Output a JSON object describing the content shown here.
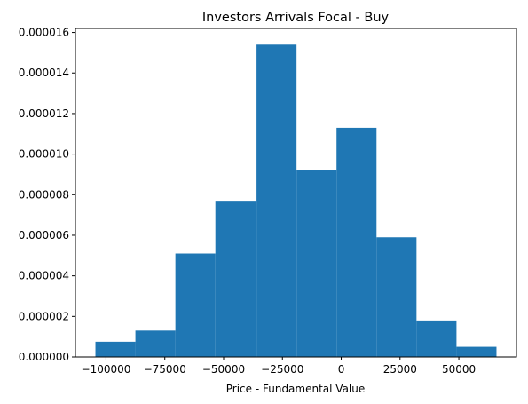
{
  "chart_data": {
    "type": "bar",
    "title": "Investors Arrivals Focal - Buy",
    "xlabel": "Price - Fundamental Value",
    "ylabel": "",
    "bin_edges": [
      -104500,
      -87500,
      -70500,
      -53500,
      -36000,
      -19000,
      -2000,
      15000,
      32000,
      49000,
      66000
    ],
    "values": [
      7.5e-07,
      1.3e-06,
      5.1e-06,
      7.7e-06,
      1.54e-05,
      9.2e-06,
      1.13e-05,
      5.9e-06,
      1.8e-06,
      5e-07
    ],
    "xlim": [
      -113000,
      74500
    ],
    "ylim": [
      0,
      1.62e-05
    ],
    "xticks": [
      -100000,
      -75000,
      -50000,
      -25000,
      0,
      25000,
      50000
    ],
    "xtick_labels": [
      "−100000",
      "−75000",
      "−50000",
      "−25000",
      "0",
      "25000",
      "50000"
    ],
    "yticks": [
      0,
      2e-06,
      4e-06,
      6e-06,
      8e-06,
      1e-05,
      1.2e-05,
      1.4e-05,
      1.6e-05
    ],
    "ytick_labels": [
      "0.000000",
      "0.000002",
      "0.000004",
      "0.000006",
      "0.000008",
      "0.000010",
      "0.000012",
      "0.000014",
      "0.000016"
    ],
    "bar_color": "#1f77b4",
    "grid": false,
    "legend": "none"
  }
}
